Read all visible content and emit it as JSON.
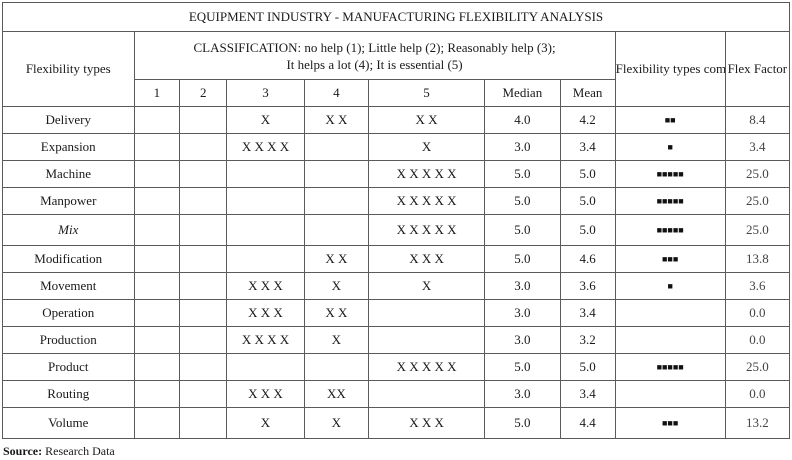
{
  "table": {
    "title": "EQUIPMENT INDUSTRY - MANUFACTURING FLEXIBILITY ANALYSIS",
    "col_flexibility_types": "Flexibility types",
    "classification_line1": "CLASSIFICATION: no help (1); Little help (2); Reasonably help (3);",
    "classification_line2": "It helps a lot (4); It is essential (5)",
    "col_composition": "Flexibility types composition",
    "col_flex_factor": "Flex Factor",
    "scale": [
      "1",
      "2",
      "3",
      "4",
      "5"
    ],
    "col_median": "Median",
    "col_mean": "Mean",
    "rows": [
      {
        "type": "Delivery",
        "c1": "",
        "c2": "",
        "c3": "X",
        "c4": "X X",
        "c5": "X X",
        "median": "4.0",
        "mean": "4.2",
        "composition": "■■",
        "factor": "8.4"
      },
      {
        "type": "Expansion",
        "c1": "",
        "c2": "",
        "c3": "X X X X",
        "c4": "",
        "c5": "X",
        "median": "3.0",
        "mean": "3.4",
        "composition": "■",
        "factor": "3.4"
      },
      {
        "type": "Machine",
        "c1": "",
        "c2": "",
        "c3": "",
        "c4": "",
        "c5": "X X X X X",
        "median": "5.0",
        "mean": "5.0",
        "composition": "■■■■■",
        "factor": "25.0"
      },
      {
        "type": "Manpower",
        "c1": "",
        "c2": "",
        "c3": "",
        "c4": "",
        "c5": "X X X X X",
        "median": "5.0",
        "mean": "5.0",
        "composition": "■■■■■",
        "factor": "25.0"
      },
      {
        "type": "Mix",
        "c1": "",
        "c2": "",
        "c3": "",
        "c4": "",
        "c5": "X X X X X",
        "median": "5.0",
        "mean": "5.0",
        "composition": "■■■■■",
        "factor": "25.0"
      },
      {
        "type": "Modification",
        "c1": "",
        "c2": "",
        "c3": "",
        "c4": "X X",
        "c5": "X X X",
        "median": "5.0",
        "mean": "4.6",
        "composition": "■■■",
        "factor": "13.8"
      },
      {
        "type": "Movement",
        "c1": "",
        "c2": "",
        "c3": "X X X",
        "c4": "X",
        "c5": "X",
        "median": "3.0",
        "mean": "3.6",
        "composition": "■",
        "factor": "3.6"
      },
      {
        "type": "Operation",
        "c1": "",
        "c2": "",
        "c3": "X X X",
        "c4": "X X",
        "c5": "",
        "median": "3.0",
        "mean": "3.4",
        "composition": "",
        "factor": "0.0"
      },
      {
        "type": "Production",
        "c1": "",
        "c2": "",
        "c3": "X X X X",
        "c4": "X",
        "c5": "",
        "median": "3.0",
        "mean": "3.2",
        "composition": "",
        "factor": "0.0"
      },
      {
        "type": "Product",
        "c1": "",
        "c2": "",
        "c3": "",
        "c4": "",
        "c5": "X X X X X",
        "median": "5.0",
        "mean": "5.0",
        "composition": "■■■■■",
        "factor": "25.0"
      },
      {
        "type": "Routing",
        "c1": "",
        "c2": "",
        "c3": "X X X",
        "c4": "XX",
        "c5": "",
        "median": "3.0",
        "mean": "3.4",
        "composition": "",
        "factor": "0.0"
      },
      {
        "type": "Volume",
        "c1": "",
        "c2": "",
        "c3": "X",
        "c4": "X",
        "c5": "X X X",
        "median": "5.0",
        "mean": "4.4",
        "composition": "■■■",
        "factor": "13.2"
      }
    ]
  },
  "source": {
    "label": "Source:",
    "text": "Research Data"
  }
}
